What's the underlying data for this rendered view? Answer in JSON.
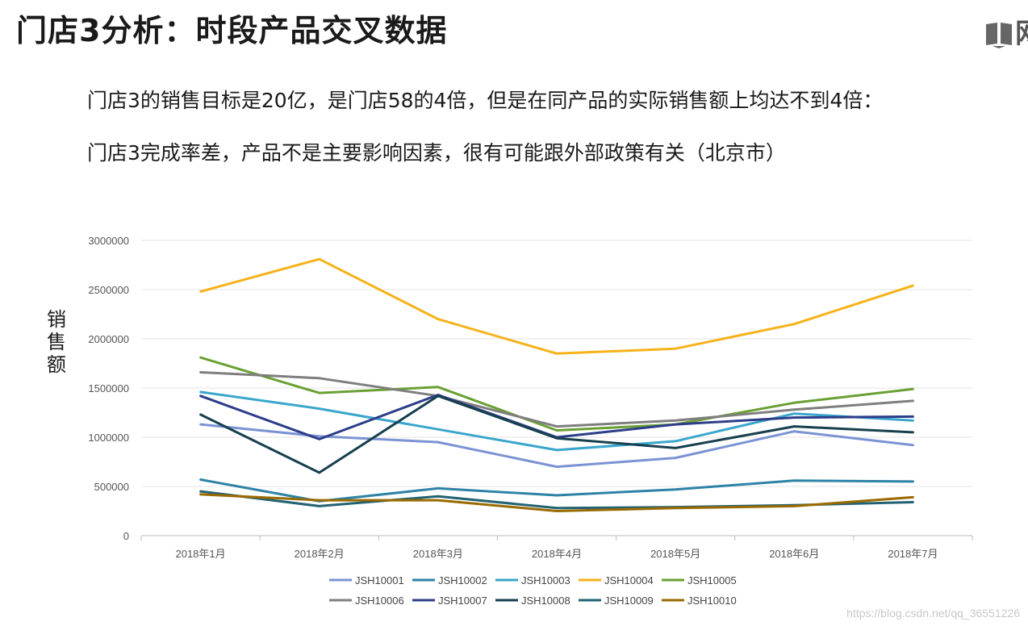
{
  "title": "门店3分析：时段产品交叉数据",
  "corner_glyph": "网",
  "paragraphs": [
    "门店3的销售目标是20亿，是门店58的4倍，但是在同产品的实际销售额上均达不到4倍：",
    "门店3完成率差，产品不是主要影响因素，很有可能跟外部政策有关（北京市）"
  ],
  "watermark": "https://blog.csdn.net/qq_36551226",
  "chart_data": {
    "type": "line",
    "ylabel": "销售额",
    "ylim": [
      0,
      3000000
    ],
    "yticks": [
      0,
      500000,
      1000000,
      1500000,
      2000000,
      2500000,
      3000000
    ],
    "categories": [
      "2018年1月",
      "2018年2月",
      "2018年3月",
      "2018年4月",
      "2018年5月",
      "2018年6月",
      "2018年7月"
    ],
    "grid": true,
    "legend_position": "bottom",
    "series": [
      {
        "name": "JSH10001",
        "color": "#7b93d3",
        "values": [
          1130000,
          1010000,
          950000,
          700000,
          790000,
          1060000,
          920000
        ]
      },
      {
        "name": "JSH10002",
        "color": "#2d82a6",
        "values": [
          570000,
          350000,
          480000,
          410000,
          470000,
          560000,
          550000
        ]
      },
      {
        "name": "JSH10003",
        "color": "#3aa6cc",
        "values": [
          1460000,
          1290000,
          1080000,
          870000,
          960000,
          1240000,
          1170000
        ]
      },
      {
        "name": "JSH10004",
        "color": "#f6b21a",
        "values": [
          2480000,
          2810000,
          2200000,
          1850000,
          1900000,
          2150000,
          2540000
        ]
      },
      {
        "name": "JSH10005",
        "color": "#6aa033",
        "values": [
          1810000,
          1450000,
          1510000,
          1070000,
          1130000,
          1350000,
          1490000
        ]
      },
      {
        "name": "JSH10006",
        "color": "#7e7e7e",
        "values": [
          1660000,
          1600000,
          1420000,
          1110000,
          1170000,
          1280000,
          1370000
        ]
      },
      {
        "name": "JSH10007",
        "color": "#2c3d8a",
        "values": [
          1420000,
          980000,
          1430000,
          1000000,
          1130000,
          1200000,
          1210000
        ]
      },
      {
        "name": "JSH10008",
        "color": "#173f4e",
        "values": [
          1230000,
          640000,
          1420000,
          990000,
          890000,
          1110000,
          1050000
        ]
      },
      {
        "name": "JSH10009",
        "color": "#226272",
        "values": [
          450000,
          300000,
          400000,
          280000,
          290000,
          310000,
          340000
        ]
      },
      {
        "name": "JSH10010",
        "color": "#9a6a00",
        "values": [
          420000,
          360000,
          360000,
          250000,
          280000,
          300000,
          390000
        ]
      }
    ]
  }
}
